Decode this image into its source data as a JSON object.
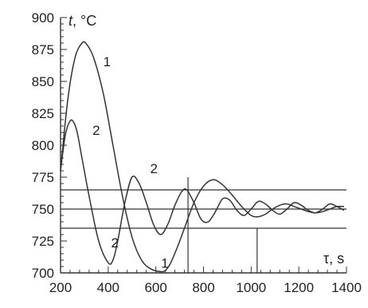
{
  "chart_data": {
    "type": "line",
    "ylabel_var": "t",
    "ylabel_unit": ", °C",
    "xlabel_var": "τ",
    "xlabel_unit": ", s",
    "xlim": [
      200,
      1400
    ],
    "ylim": [
      700,
      900
    ],
    "x_ticks": [
      200,
      400,
      600,
      800,
      1000,
      1200,
      1400
    ],
    "y_ticks": [
      700,
      725,
      750,
      775,
      800,
      825,
      850,
      875,
      900
    ],
    "grid": false,
    "series": [
      {
        "name": "1",
        "x": [
          200,
          230,
          260,
          290,
          310,
          340,
          380,
          420,
          460,
          500,
          540,
          580,
          620,
          640,
          660,
          690,
          720,
          760,
          800,
          840,
          880,
          920,
          960,
          1000,
          1030,
          1060,
          1090,
          1120,
          1150,
          1180,
          1210,
          1240,
          1270,
          1300,
          1330,
          1360,
          1390
        ],
        "y": [
          780,
          835,
          868,
          880,
          879,
          868,
          840,
          800,
          760,
          728,
          710,
          703,
          701,
          702,
          707,
          720,
          735,
          755,
          768,
          773,
          769,
          761,
          752,
          745,
          744,
          746,
          750,
          753,
          754,
          752,
          750,
          748,
          747,
          748,
          750,
          752,
          752
        ]
      },
      {
        "name": "2",
        "x": [
          200,
          220,
          240,
          255,
          270,
          290,
          320,
          360,
          400,
          420,
          440,
          470,
          500,
          530,
          560,
          590,
          620,
          650,
          680,
          710,
          730,
          760,
          790,
          820,
          850,
          880,
          910,
          940,
          970,
          1000,
          1030,
          1060,
          1090,
          1120,
          1150,
          1180,
          1210,
          1240,
          1270,
          1300,
          1330,
          1360,
          1390
        ],
        "y": [
          780,
          808,
          819,
          818,
          810,
          790,
          760,
          725,
          708,
          710,
          725,
          755,
          775,
          770,
          755,
          738,
          730,
          738,
          753,
          764,
          765,
          755,
          742,
          740,
          748,
          758,
          757,
          749,
          745,
          750,
          756,
          754,
          749,
          746,
          750,
          755,
          753,
          749,
          747,
          750,
          754,
          752,
          749
        ]
      }
    ],
    "hlines": [
      765,
      750,
      735
    ],
    "vlines": [
      {
        "x": 735,
        "y_from": 700,
        "y_to": 775
      },
      {
        "x": 1025,
        "y_from": 700,
        "y_to": 735
      }
    ],
    "curve_labels": [
      {
        "text": "1",
        "x": 395,
        "y": 862
      },
      {
        "text": "2",
        "x": 350,
        "y": 808
      },
      {
        "text": "2",
        "x": 592,
        "y": 778
      },
      {
        "text": "2",
        "x": 428,
        "y": 720
      },
      {
        "text": "1",
        "x": 638,
        "y": 704
      }
    ],
    "colors": {
      "line": "#333333",
      "axis": "#333333",
      "text": "#222222",
      "background": "#ffffff"
    }
  }
}
